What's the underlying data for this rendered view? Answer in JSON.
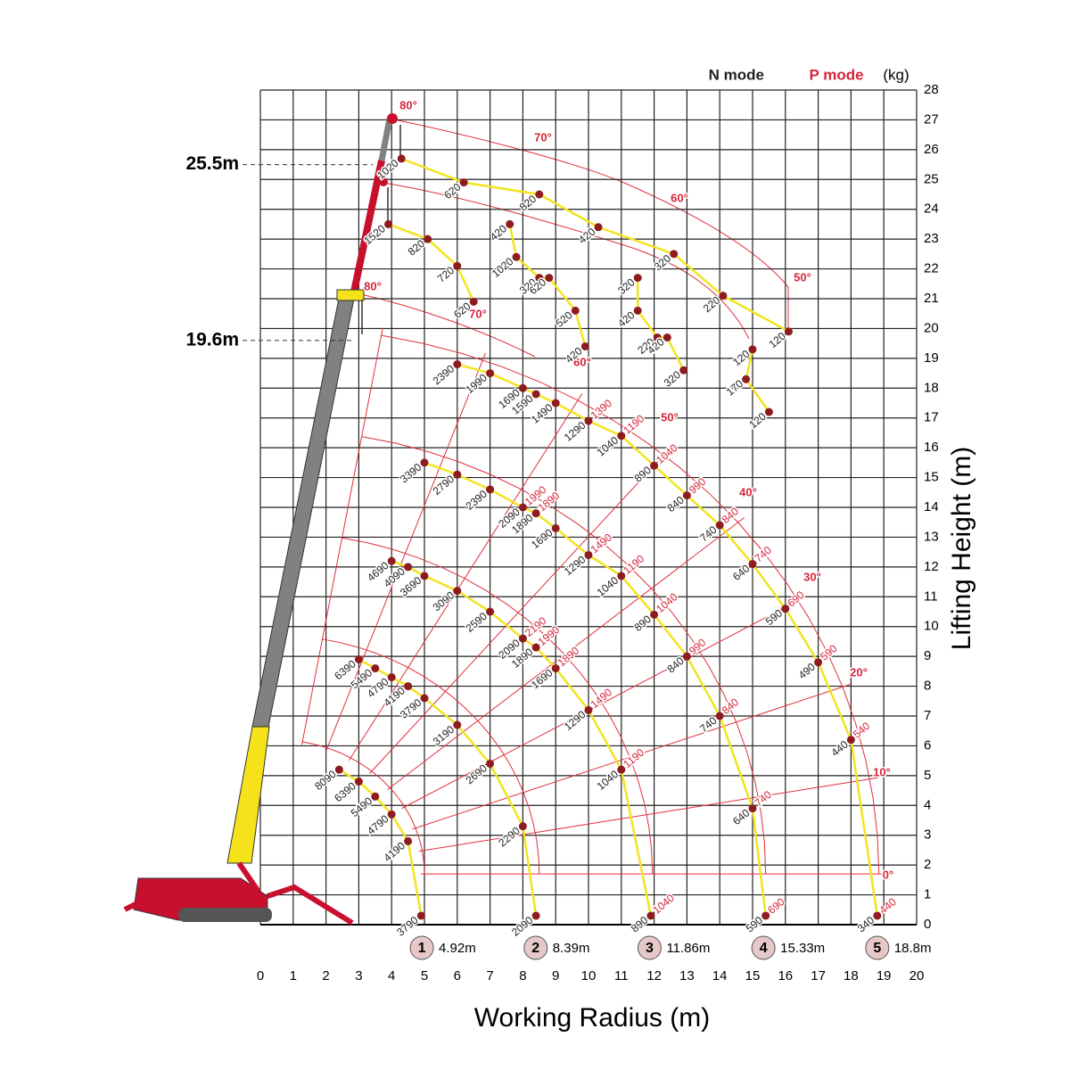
{
  "chart_data": {
    "type": "loadchart",
    "xlabel": "Working Radius (m)",
    "ylabel": "Lifting Height (m)",
    "xlim": [
      0,
      20
    ],
    "ylim": [
      0,
      28
    ],
    "xticks": [
      0,
      1,
      2,
      3,
      4,
      5,
      6,
      7,
      8,
      9,
      10,
      11,
      12,
      13,
      14,
      15,
      16,
      17,
      18,
      19,
      20
    ],
    "yticks": [
      0,
      1,
      2,
      3,
      4,
      5,
      6,
      7,
      8,
      9,
      10,
      11,
      12,
      13,
      14,
      15,
      16,
      17,
      18,
      19,
      20,
      21,
      22,
      23,
      24,
      25,
      26,
      27,
      28
    ],
    "legend": {
      "n": "N mode",
      "p": "P mode",
      "unit": "(kg)"
    },
    "n_color": "#222222",
    "p_color": "#d6253a",
    "curve_color": "#f2e41f",
    "dot_color": "#8e1b1f",
    "heights": [
      {
        "value": 25.5,
        "label": "25.5m"
      },
      {
        "value": 19.6,
        "label": "19.6m"
      }
    ],
    "booms": [
      {
        "no": 1,
        "radius": {
          "value": 4.92,
          "label": "4.92m"
        }
      },
      {
        "no": 2,
        "radius": {
          "value": 8.39,
          "label": "8.39m"
        }
      },
      {
        "no": 3,
        "radius": {
          "value": 11.86,
          "label": "11.86m"
        }
      },
      {
        "no": 4,
        "radius": {
          "value": 15.33,
          "label": "15.33m"
        }
      },
      {
        "no": 5,
        "radius": {
          "value": 18.8,
          "label": "18.8m"
        }
      }
    ],
    "angles": [
      "80°",
      "70°",
      "60°",
      "50°",
      "80°",
      "70°",
      "60°",
      "50°",
      "40°",
      "30°",
      "20°",
      "10°",
      "0°"
    ],
    "curves": [
      {
        "x": [
          2.4,
          3.0,
          3.5,
          4.0,
          4.5,
          4.9
        ],
        "y": [
          5.2,
          4.8,
          4.3,
          3.7,
          2.8,
          0.3
        ],
        "n": [
          8090,
          6390,
          5490,
          4790,
          4190,
          3790
        ],
        "p": [
          null,
          null,
          null,
          null,
          null,
          null
        ]
      },
      {
        "x": [
          3.0,
          3.5,
          4.0,
          4.5,
          5.0,
          6.0,
          7.0,
          8.0,
          8.4
        ],
        "y": [
          8.9,
          8.6,
          8.3,
          8.0,
          7.6,
          6.7,
          5.4,
          3.3,
          0.3
        ],
        "n": [
          6390,
          5490,
          4790,
          4190,
          3790,
          3190,
          2690,
          2290,
          2090
        ],
        "p": [
          null,
          null,
          null,
          null,
          null,
          null,
          null,
          null,
          null
        ]
      },
      {
        "x": [
          4.0,
          4.5,
          5.0,
          6.0,
          7.0,
          8.0,
          8.4,
          9.0,
          10.0,
          11.0,
          11.9
        ],
        "y": [
          12.2,
          12.0,
          11.7,
          11.2,
          10.5,
          9.6,
          9.3,
          8.6,
          7.2,
          5.2,
          0.3
        ],
        "n": [
          4690,
          4090,
          3690,
          3090,
          2590,
          2090,
          1890,
          1690,
          1290,
          1040,
          890
        ],
        "p": [
          null,
          null,
          null,
          null,
          null,
          2190,
          1990,
          1890,
          1490,
          1190,
          1040
        ]
      },
      {
        "x": [
          5.0,
          6.0,
          7.0,
          8.0,
          8.4,
          9.0,
          10.0,
          11.0,
          12.0,
          13.0,
          14.0,
          15.0,
          15.4
        ],
        "y": [
          15.5,
          15.1,
          14.6,
          14.0,
          13.8,
          13.3,
          12.4,
          11.7,
          10.4,
          9.0,
          7.0,
          3.9,
          0.3
        ],
        "n": [
          3390,
          2790,
          2390,
          2090,
          1890,
          1690,
          1290,
          1040,
          890,
          840,
          740,
          640,
          590
        ],
        "p": [
          null,
          null,
          null,
          1990,
          1890,
          null,
          1490,
          1190,
          1040,
          990,
          840,
          740,
          690
        ]
      },
      {
        "x": [
          6.0,
          7.0,
          8.0,
          8.4,
          9.0,
          10.0,
          11.0,
          12.0,
          13.0,
          14.0,
          15.0,
          16.0,
          17.0,
          18.0,
          18.8
        ],
        "y": [
          18.8,
          18.5,
          18.0,
          17.8,
          17.5,
          16.9,
          16.4,
          15.4,
          14.4,
          13.4,
          12.1,
          10.6,
          8.8,
          6.2,
          0.3
        ],
        "n": [
          2390,
          1990,
          1690,
          1590,
          1490,
          1290,
          1040,
          890,
          840,
          740,
          640,
          590,
          490,
          440,
          340
        ],
        "p": [
          null,
          null,
          null,
          null,
          null,
          1390,
          1190,
          1040,
          990,
          840,
          740,
          690,
          590,
          540,
          440
        ]
      },
      {
        "x": [
          4.3,
          6.2,
          8.5,
          10.3,
          12.6,
          14.1,
          16.1
        ],
        "y": [
          25.7,
          24.9,
          24.5,
          23.4,
          22.5,
          21.1,
          19.9
        ],
        "n": [
          1020,
          620,
          820,
          420,
          320,
          220,
          120
        ],
        "p": [
          null,
          null,
          null,
          null,
          null,
          null,
          null
        ]
      },
      {
        "x": [
          3.9,
          5.1,
          6.0,
          6.5
        ],
        "y": [
          23.5,
          23.0,
          22.1,
          20.9
        ],
        "n": [
          1520,
          820,
          720,
          620
        ],
        "p": [
          null,
          null,
          null,
          null
        ]
      },
      {
        "x": [
          7.6,
          7.8,
          8.5,
          8.8,
          9.6,
          9.9
        ],
        "y": [
          23.5,
          22.4,
          21.7,
          21.7,
          20.6,
          19.4
        ],
        "n": [
          420,
          1020,
          320,
          620,
          520,
          420
        ],
        "p": [
          null,
          null,
          null,
          null,
          null,
          null
        ]
      },
      {
        "x": [
          11.5,
          11.5,
          12.1,
          12.4,
          12.9
        ],
        "y": [
          21.7,
          20.6,
          19.7,
          19.7,
          18.6
        ],
        "n": [
          320,
          420,
          220,
          420,
          320
        ],
        "p": [
          null,
          null,
          null,
          null,
          null
        ]
      },
      {
        "x": [
          15.0,
          14.8,
          15.5
        ],
        "y": [
          19.3,
          18.3,
          17.2
        ],
        "n": [
          120,
          170,
          120
        ],
        "p": [
          null,
          null,
          null
        ]
      }
    ]
  }
}
